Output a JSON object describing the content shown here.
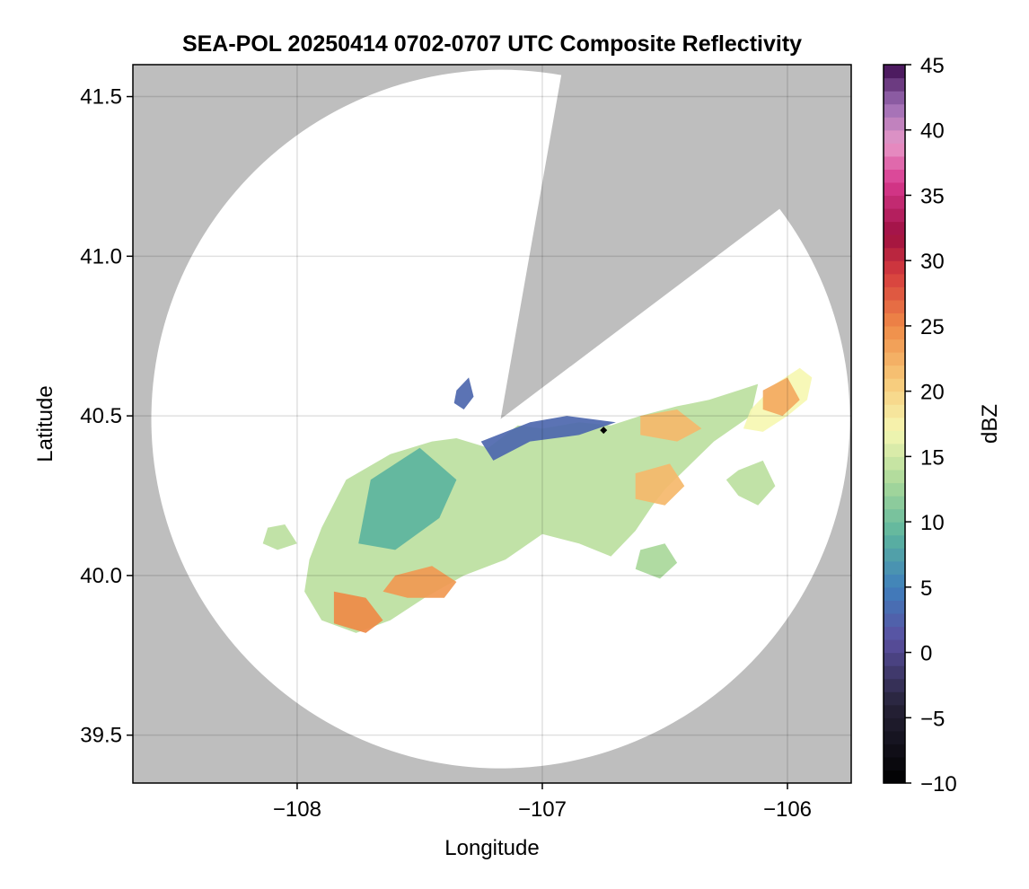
{
  "chart_data": {
    "type": "heatmap",
    "title": "SEA-POL 20250414 0702-0707 UTC Composite Reflectivity",
    "xlabel": "Longitude",
    "ylabel": "Latitude",
    "xlim": [
      -108.67,
      -105.74
    ],
    "ylim": [
      39.35,
      41.6
    ],
    "xticks": [
      -108,
      -107,
      -106
    ],
    "xtick_labels": [
      "−108",
      "−107",
      "−106"
    ],
    "yticks": [
      39.5,
      40.0,
      40.5,
      41.0,
      41.5
    ],
    "ytick_labels": [
      "39.5",
      "40.0",
      "40.5",
      "41.0",
      "41.5"
    ],
    "grid": true,
    "background_color": "#bebebe",
    "coverage_color": "#ffffff",
    "radar_site": {
      "lon": -107.17,
      "lat": 40.49
    },
    "marker": {
      "lon": -106.75,
      "lat": 40.455,
      "color": "#000000"
    },
    "colorbar": {
      "label": "dBZ",
      "min": -10,
      "max": 45,
      "ticks": [
        -10,
        -5,
        0,
        5,
        10,
        15,
        20,
        25,
        30,
        35,
        40,
        45
      ],
      "tick_labels": [
        "−10",
        "−5",
        "0",
        "5",
        "10",
        "15",
        "20",
        "25",
        "30",
        "35",
        "40",
        "45"
      ],
      "colormap_stops": [
        {
          "value": -10,
          "color": "#000000"
        },
        {
          "value": -4,
          "color": "#262238"
        },
        {
          "value": 1,
          "color": "#5a4fa0"
        },
        {
          "value": 5,
          "color": "#3f7fbc"
        },
        {
          "value": 9,
          "color": "#5cb49e"
        },
        {
          "value": 13,
          "color": "#a9d89a"
        },
        {
          "value": 17,
          "color": "#f6f7b2"
        },
        {
          "value": 21,
          "color": "#f7c777"
        },
        {
          "value": 25,
          "color": "#ef8a47"
        },
        {
          "value": 29,
          "color": "#d63c3e"
        },
        {
          "value": 32,
          "color": "#9e1040"
        },
        {
          "value": 36,
          "color": "#d8398f"
        },
        {
          "value": 39,
          "color": "#e899c8"
        },
        {
          "value": 42,
          "color": "#9a6bb3"
        },
        {
          "value": 45,
          "color": "#3d0b4f"
        }
      ]
    },
    "echo_regions": [
      {
        "name": "main-band",
        "dbz": 14,
        "lon": [
          -107.9,
          -107.8,
          -107.62,
          -107.45,
          -107.35,
          -107.22,
          -107.1,
          -107.0,
          -106.85,
          -106.72,
          -106.6,
          -106.45,
          -106.32,
          -106.2,
          -106.12,
          -106.15,
          -106.3,
          -106.42,
          -106.5,
          -106.55,
          -106.62,
          -106.72,
          -106.85,
          -107.0,
          -107.15,
          -107.32,
          -107.48,
          -107.62,
          -107.76,
          -107.9,
          -107.97,
          -107.95
        ],
        "lat": [
          40.15,
          40.3,
          40.38,
          40.42,
          40.43,
          40.4,
          40.47,
          40.46,
          40.48,
          40.47,
          40.5,
          40.53,
          40.55,
          40.58,
          40.6,
          40.5,
          40.42,
          40.33,
          40.27,
          40.22,
          40.14,
          40.06,
          40.1,
          40.13,
          40.05,
          40.0,
          39.93,
          39.86,
          39.82,
          39.86,
          39.95,
          40.05
        ]
      },
      {
        "name": "ne-cell",
        "dbz": 17,
        "lon": [
          -106.15,
          -106.05,
          -105.95,
          -105.9,
          -105.92,
          -106.0,
          -106.1,
          -106.18
        ],
        "lat": [
          40.52,
          40.6,
          40.65,
          40.62,
          40.55,
          40.5,
          40.45,
          40.46
        ]
      },
      {
        "name": "east-scatter",
        "dbz": 14,
        "lon": [
          -106.2,
          -106.1,
          -106.05,
          -106.12,
          -106.2,
          -106.25
        ],
        "lat": [
          40.33,
          40.36,
          40.28,
          40.22,
          40.25,
          40.3
        ]
      },
      {
        "name": "south-patch",
        "dbz": 13,
        "lon": [
          -106.6,
          -106.5,
          -106.45,
          -106.52,
          -106.62
        ],
        "lat": [
          40.08,
          40.1,
          40.04,
          39.99,
          40.02
        ]
      },
      {
        "name": "west-cell",
        "dbz": 14,
        "lon": [
          -108.12,
          -108.05,
          -108.0,
          -108.08,
          -108.14
        ],
        "lat": [
          40.15,
          40.16,
          40.1,
          40.08,
          40.1
        ]
      },
      {
        "name": "weak-nw-echo",
        "dbz": 3,
        "lon": [
          -107.35,
          -107.3,
          -107.28,
          -107.32,
          -107.36
        ],
        "lat": [
          40.58,
          40.62,
          40.56,
          40.52,
          40.54
        ]
      },
      {
        "name": "weak-north-edge",
        "dbz": 3,
        "lon": [
          -107.25,
          -107.05,
          -106.9,
          -106.7,
          -106.85,
          -107.05,
          -107.2
        ],
        "lat": [
          40.42,
          40.48,
          40.5,
          40.48,
          40.44,
          40.42,
          40.36
        ]
      },
      {
        "name": "west-teal-core",
        "dbz": 9,
        "lon": [
          -107.7,
          -107.5,
          -107.35,
          -107.42,
          -107.6,
          -107.75
        ],
        "lat": [
          40.3,
          40.4,
          40.3,
          40.18,
          40.08,
          40.1
        ]
      },
      {
        "name": "core-1",
        "dbz": 24,
        "lon": [
          -107.6,
          -107.45,
          -107.35,
          -107.4,
          -107.55,
          -107.65
        ],
        "lat": [
          40.0,
          40.03,
          39.98,
          39.93,
          39.93,
          39.95
        ]
      },
      {
        "name": "core-2",
        "dbz": 25,
        "lon": [
          -107.85,
          -107.72,
          -107.65,
          -107.72,
          -107.85
        ],
        "lat": [
          39.95,
          39.93,
          39.86,
          39.82,
          39.85
        ]
      },
      {
        "name": "core-3",
        "dbz": 22,
        "lon": [
          -106.62,
          -106.48,
          -106.42,
          -106.5,
          -106.62
        ],
        "lat": [
          40.32,
          40.35,
          40.28,
          40.22,
          40.24
        ]
      },
      {
        "name": "core-4",
        "dbz": 22,
        "lon": [
          -106.6,
          -106.45,
          -106.35,
          -106.45,
          -106.6
        ],
        "lat": [
          40.5,
          40.52,
          40.46,
          40.42,
          40.44
        ]
      },
      {
        "name": "core-5",
        "dbz": 23,
        "lon": [
          -106.1,
          -106.0,
          -105.95,
          -106.02,
          -106.1
        ],
        "lat": [
          40.58,
          40.62,
          40.55,
          40.5,
          40.52
        ]
      }
    ]
  }
}
